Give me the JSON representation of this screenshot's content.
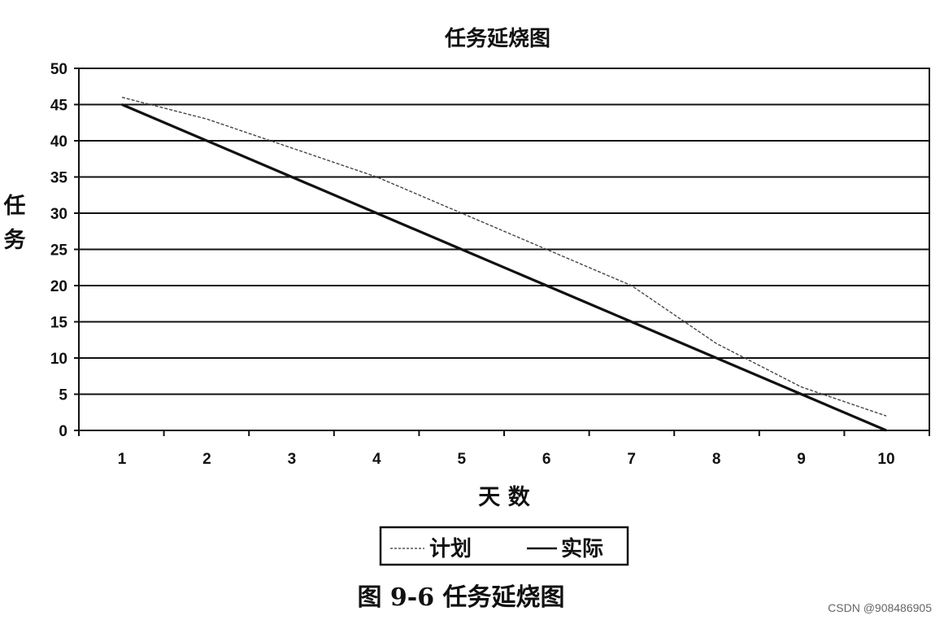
{
  "chart_data": {
    "type": "line",
    "title": "任务延烧图",
    "xlabel": "天 数",
    "ylabel": "任务",
    "categories": [
      "1",
      "2",
      "3",
      "4",
      "5",
      "6",
      "7",
      "8",
      "9",
      "10"
    ],
    "x": [
      1,
      2,
      3,
      4,
      5,
      6,
      7,
      8,
      9,
      10
    ],
    "ylim": [
      0,
      50
    ],
    "yticks": [
      0,
      5,
      10,
      15,
      20,
      25,
      30,
      35,
      40,
      45,
      50
    ],
    "grid": true,
    "legend_position": "bottom",
    "series": [
      {
        "name": "计划",
        "style": "dashed-thin",
        "values": [
          46,
          43,
          39,
          35,
          30,
          25,
          20,
          12,
          6,
          2
        ]
      },
      {
        "name": "实际",
        "style": "solid-thick",
        "values": [
          45,
          40,
          35,
          30,
          25,
          20,
          15,
          10,
          5,
          0
        ]
      }
    ]
  },
  "caption": "图 9-6 任务延烧图",
  "watermark": "CSDN @908486905"
}
